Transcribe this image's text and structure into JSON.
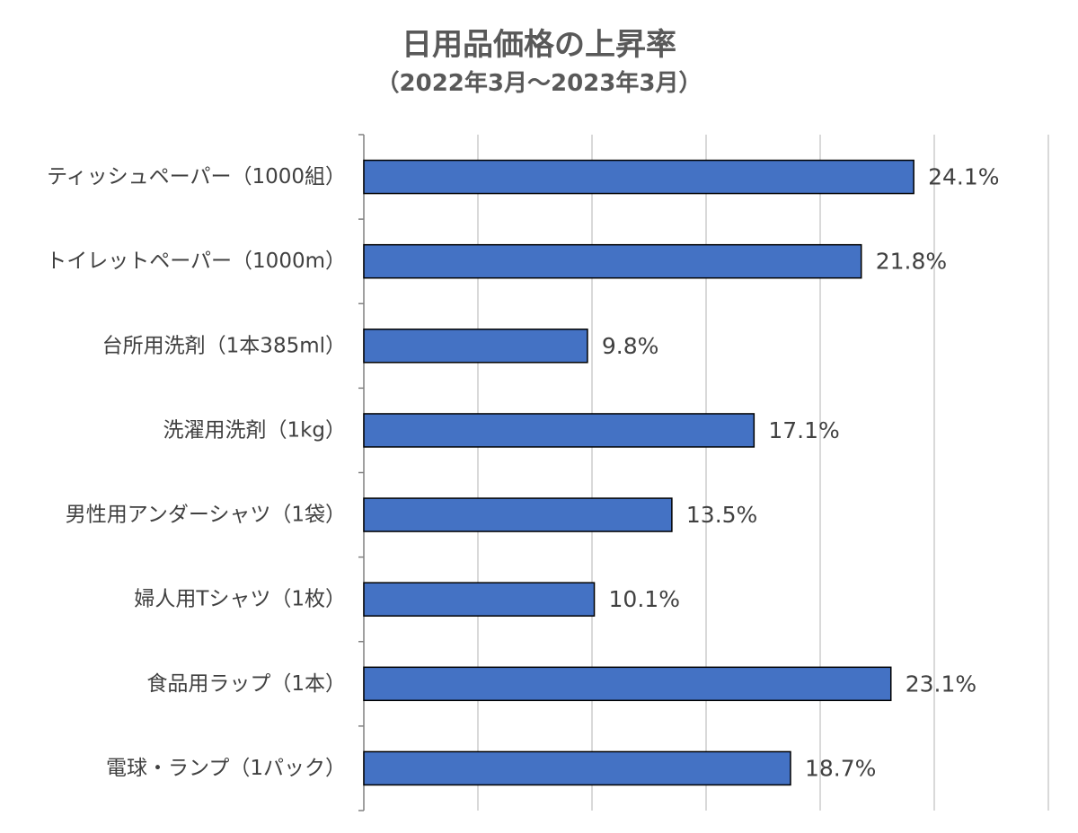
{
  "chart_data": {
    "type": "bar",
    "orientation": "horizontal",
    "title": "日用品価格の上昇率",
    "subtitle": "（2022年3月～2023年3月）",
    "categories": [
      "ティッシュペーパー（1000組）",
      "トイレットペーパー（1000m）",
      "台所用洗剤（1本385ml）",
      "洗濯用洗剤（1kg）",
      "男性用アンダーシャツ（1袋）",
      "婦人用Tシャツ（1枚）",
      "食品用ラップ（1本）",
      "電球・ランプ（1パック）"
    ],
    "values": [
      24.1,
      21.8,
      9.8,
      17.1,
      13.5,
      10.1,
      23.1,
      18.7
    ],
    "data_labels": [
      "24.1%",
      "21.8%",
      "9.8%",
      "17.1%",
      "13.5%",
      "10.1%",
      "23.1%",
      "18.7%"
    ],
    "xlim": [
      0,
      30
    ],
    "grid": true,
    "bar_color": "#4472C4",
    "bar_edge_color": "#000000",
    "grid_color": "#D9D9D9",
    "text_color": "#404040"
  }
}
